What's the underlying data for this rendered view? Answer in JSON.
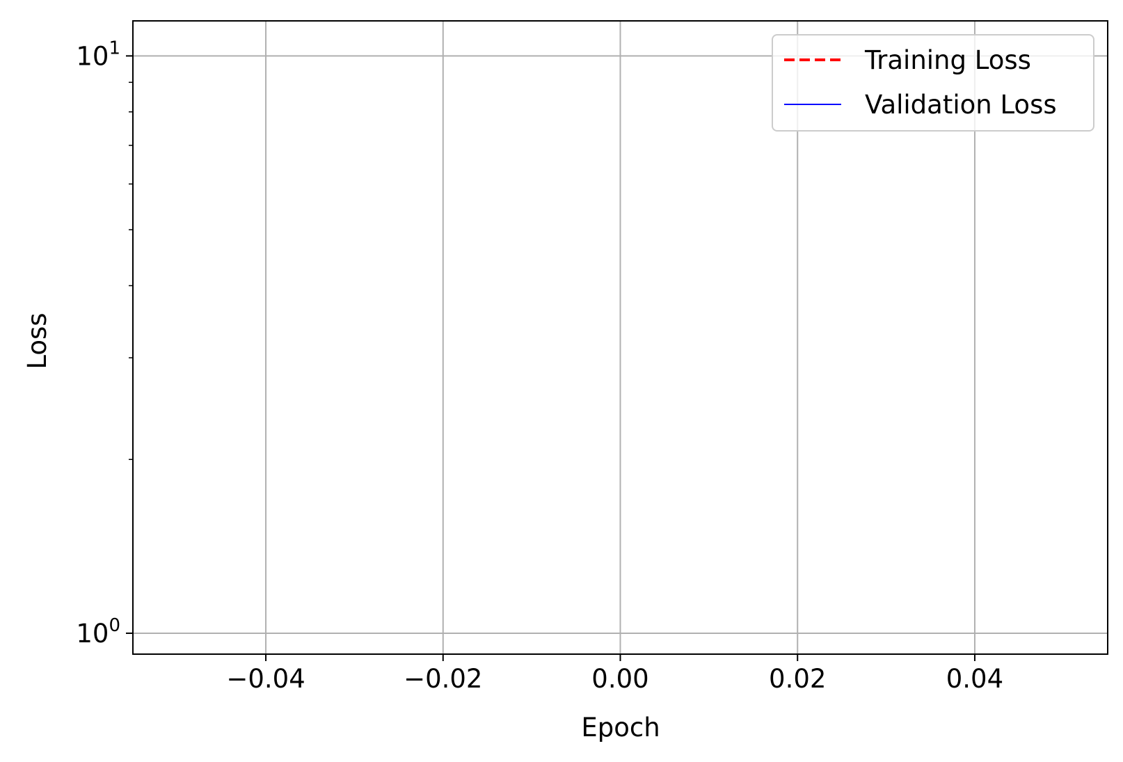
{
  "chart_data": {
    "type": "line",
    "title": "",
    "xlabel": "Epoch",
    "ylabel": "Loss",
    "xlim": [
      -0.055,
      0.055
    ],
    "ylim": [
      0.92,
      11.5
    ],
    "yscale": "log",
    "grid": true,
    "x_ticks": [
      -0.04,
      -0.02,
      0.0,
      0.02,
      0.04
    ],
    "x_tick_labels": [
      "−0.04",
      "−0.02",
      "0.00",
      "0.02",
      "0.04"
    ],
    "y_major_ticks": [
      {
        "value": 1,
        "base": "10",
        "exp": "0"
      },
      {
        "value": 10,
        "base": "10",
        "exp": "1"
      }
    ],
    "y_minor_ticks": [
      0.9,
      2,
      3,
      4,
      5,
      6,
      7,
      8,
      9
    ],
    "legend": {
      "placement": "upper-right",
      "entries": [
        {
          "label": "Training Loss",
          "color": "#ff0000",
          "style": "dashed"
        },
        {
          "label": "Validation Loss",
          "color": "#0000ff",
          "style": "solid"
        }
      ]
    },
    "series": [
      {
        "name": "Training Loss",
        "color": "#ff0000",
        "style": "dashed",
        "x": [],
        "y": []
      },
      {
        "name": "Validation Loss",
        "color": "#0000ff",
        "style": "solid",
        "x": [],
        "y": []
      }
    ]
  }
}
